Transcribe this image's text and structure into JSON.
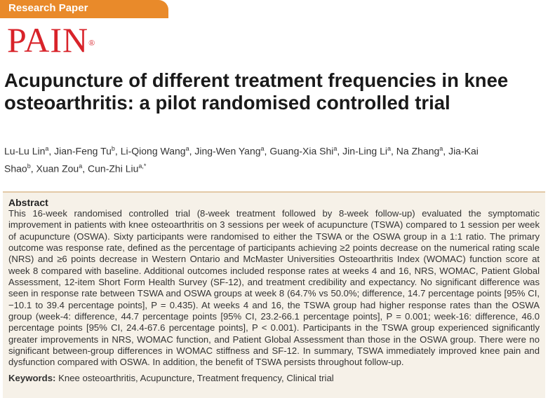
{
  "header": {
    "tag": "Research Paper",
    "journal": "PAIN",
    "mark": "®"
  },
  "article": {
    "title": "Acupuncture of different treatment frequencies in knee osteoarthritis: a pilot randomised controlled trial",
    "authors": [
      [
        "Lu-Lu Lin",
        "a"
      ],
      [
        ", Jian-Feng Tu",
        "b"
      ],
      [
        ", Li-Qiong Wang",
        "a"
      ],
      [
        ", Jing-Wen Yang",
        "a"
      ],
      [
        ", Guang-Xia Shi",
        "a"
      ],
      [
        ", Jin-Ling Li",
        "a"
      ],
      [
        ", Na Zhang",
        "a"
      ],
      [
        ", Jia-Kai Shao",
        "b"
      ],
      [
        ", Xuan Zou",
        "a"
      ],
      [
        ", Cun-Zhi Liu",
        "a,*"
      ]
    ],
    "abstract": {
      "heading": "Abstract",
      "body": "This 16-week randomised controlled trial (8-week treatment followed by 8-week follow-up) evaluated the symptomatic improvement in patients with knee osteoarthritis on 3 sessions per week of acupuncture (TSWA) compared to 1 session per week of acupuncture (OSWA). Sixty participants were randomised to either the TSWA or the OSWA group in a 1:1 ratio. The primary outcome was response rate, defined as the percentage of participants achieving ≥2 points decrease on the numerical rating scale (NRS) and ≥6 points decrease in Western Ontario and McMaster Universities Osteoarthritis Index (WOMAC) function score at week 8 compared with baseline. Additional outcomes included response rates at weeks 4 and 16, NRS, WOMAC, Patient Global Assessment, 12-item Short Form Health Survey (SF-12), and treatment credibility and expectancy. No significant difference was seen in response rate between TSWA and OSWA groups at week 8 (64.7% vs 50.0%; difference, 14.7 percentage points [95% CI, −10.1 to 39.4 percentage points], P = 0.435). At weeks 4 and 16, the TSWA group had higher response rates than the OSWA group (week-4: difference, 44.7 percentage points [95% CI, 23.2-66.1 percentage points], P = 0.001; week-16: difference, 46.0 percentage points [95% CI, 24.4-67.6 percentage points], P < 0.001). Participants in the TSWA group experienced significantly greater improvements in NRS, WOMAC function, and Patient Global Assessment than those in the OSWA group. There were no significant between-group differences in WOMAC stiffness and SF-12. In summary, TSWA immediately improved knee pain and dysfunction compared with OSWA. In addition, the benefit of TSWA persists throughout follow-up.",
      "keywords_label": "Keywords:",
      "keywords": "Knee osteoarthritis, Acupuncture, Treatment frequency, Clinical trial"
    }
  }
}
